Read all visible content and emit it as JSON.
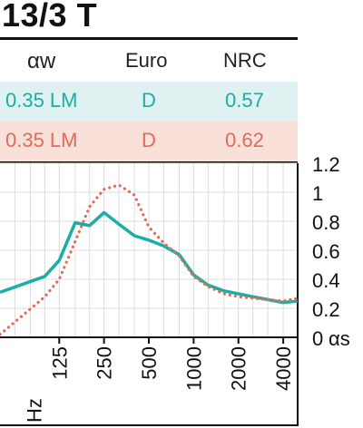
{
  "title": "13/3 T",
  "table": {
    "headers": [
      "αw",
      "Euro",
      "NRC"
    ],
    "rows": [
      {
        "values": [
          "0.35 LM",
          "D",
          "0.57"
        ],
        "color": "#1aaea6",
        "bg": "#dff1f0"
      },
      {
        "values": [
          "0.35 LM",
          "D",
          "0.62"
        ],
        "color": "#e26a5a",
        "bg": "#f9e1da"
      }
    ]
  },
  "chart_data": {
    "type": "line",
    "xlabel": "Hz",
    "ylabel": "αs",
    "x_ticks": [
      "125",
      "250",
      "500",
      "1000",
      "2000",
      "4000"
    ],
    "y_ticks": [
      "0",
      "0.2",
      "0.4",
      "0.6",
      "0.8",
      "1",
      "1.2"
    ],
    "ylim": [
      0,
      1.2
    ],
    "grid": true,
    "series": [
      {
        "style": "solid",
        "color": "#1aaea6",
        "x": [
          50,
          100,
          125,
          160,
          200,
          250,
          315,
          400,
          500,
          630,
          800,
          1000,
          1250,
          1600,
          2000,
          2500,
          3150,
          4000,
          5000
        ],
        "values": [
          0.31,
          0.42,
          0.53,
          0.79,
          0.77,
          0.86,
          0.78,
          0.7,
          0.67,
          0.63,
          0.57,
          0.43,
          0.36,
          0.32,
          0.3,
          0.28,
          0.26,
          0.24,
          0.25
        ]
      },
      {
        "style": "dotted",
        "color": "#e26a5a",
        "x": [
          50,
          100,
          125,
          160,
          200,
          250,
          315,
          400,
          500,
          630,
          800,
          1000,
          1250,
          1600,
          2000,
          2500,
          3150,
          4000,
          5000
        ],
        "values": [
          0.02,
          0.28,
          0.4,
          0.66,
          0.9,
          1.02,
          1.05,
          0.98,
          0.76,
          0.65,
          0.56,
          0.42,
          0.35,
          0.3,
          0.28,
          0.27,
          0.26,
          0.25,
          0.27
        ]
      }
    ]
  }
}
